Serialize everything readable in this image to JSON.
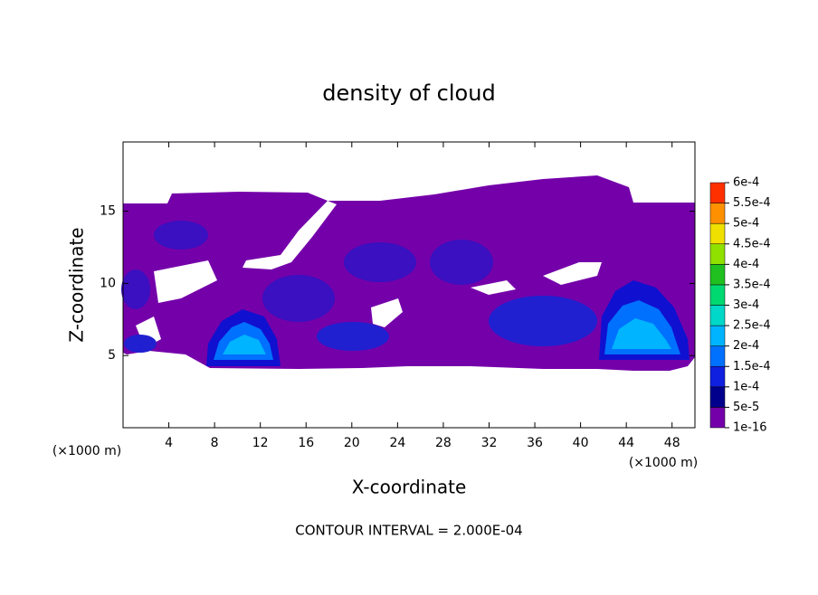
{
  "chart_data": {
    "type": "contour",
    "title": "density of cloud",
    "x_label": "X-coordinate",
    "y_label": "Z-coordinate",
    "x_unit": "(×1000 m)",
    "note": "CONTOUR INTERVAL = 2.000E-04",
    "xlim": [
      0,
      50
    ],
    "xticks": [
      4,
      8,
      12,
      16,
      20,
      24,
      28,
      32,
      36,
      40,
      44,
      48
    ],
    "ylim": [
      0,
      19.8
    ],
    "yticks": [
      5,
      10,
      15
    ],
    "colorbar": {
      "levels": [
        1e-16,
        {
          "value": 5e-05,
          "label": "5e-5"
        },
        {
          "value": 0.0001,
          "label": "1e-4"
        },
        {
          "value": 0.00015,
          "label": "1.5e-4"
        },
        {
          "value": 0.0002,
          "label": "2e-4"
        },
        {
          "value": 0.00025,
          "label": "2.5e-4"
        },
        {
          "value": 0.0003,
          "label": "3e-4"
        },
        {
          "value": 0.00035,
          "label": "3.5e-4"
        },
        {
          "value": 0.0004,
          "label": "4e-4"
        },
        {
          "value": 0.00045,
          "label": "4.5e-4"
        },
        {
          "value": 0.0005,
          "label": "5e-4"
        },
        {
          "value": 0.00055,
          "label": "5.5e-4"
        },
        {
          "value": 0.0006,
          "label": "6e-4"
        }
      ],
      "colors": [
        "#7400aa",
        "#00008c",
        "#1020e0",
        "#0070ff",
        "#00b4ff",
        "#00d8c8",
        "#00d870",
        "#20c020",
        "#90e000",
        "#f0e000",
        "#ff9000",
        "#ff3000"
      ]
    }
  }
}
